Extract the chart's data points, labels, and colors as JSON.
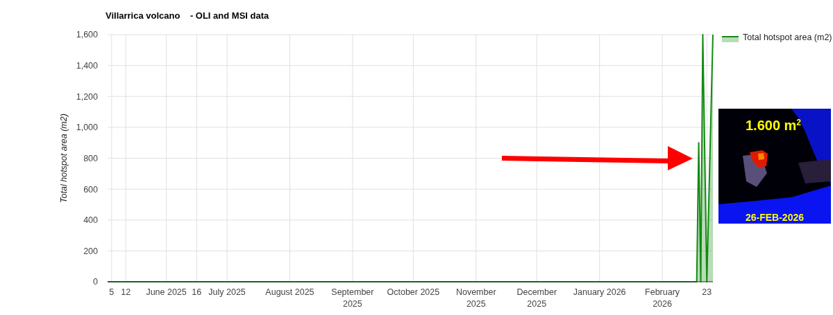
{
  "chart_data": {
    "type": "area",
    "title": "Villarrica volcano    - OLI and MSI data",
    "ylabel": "Total hotspot area (m2)",
    "x": [
      "2025-05-03",
      "2026-02-18",
      "2026-02-19",
      "2026-02-20",
      "2026-02-21",
      "2026-02-23",
      "2026-02-26"
    ],
    "series": [
      {
        "name": "Total hotspot area (m2)",
        "color": "#138a13",
        "values": [
          0,
          0,
          900,
          0,
          1600,
          0,
          1600
        ]
      }
    ],
    "xlim": [
      "2025-05-03",
      "2026-02-26"
    ],
    "xticks": [
      {
        "value": "2025-05-05",
        "label": "5"
      },
      {
        "value": "2025-05-12",
        "label": "12"
      },
      {
        "value": "2025-06-01",
        "label": "June 2025"
      },
      {
        "value": "2025-06-16",
        "label": "16"
      },
      {
        "value": "2025-07-01",
        "label": "July 2025"
      },
      {
        "value": "2025-08-01",
        "label": "August 2025"
      },
      {
        "value": "2025-09-01",
        "label": "September 2025"
      },
      {
        "value": "2025-10-01",
        "label": "October 2025"
      },
      {
        "value": "2025-11-01",
        "label": "November 2025"
      },
      {
        "value": "2025-12-01",
        "label": "December 2025"
      },
      {
        "value": "2026-01-01",
        "label": "January 2026"
      },
      {
        "value": "2026-02-01",
        "label": "February 2026"
      },
      {
        "value": "2026-02-23",
        "label": "23"
      }
    ],
    "ylim": [
      0,
      1600
    ],
    "yticks": [
      0,
      {
        "value": 200,
        "label": "200"
      },
      {
        "value": 400,
        "label": "400"
      },
      {
        "value": 600,
        "label": "600"
      },
      {
        "value": 800,
        "label": "800"
      },
      {
        "value": 1000,
        "label": "1,000"
      },
      {
        "value": 1200,
        "label": "1,200"
      },
      {
        "value": 1400,
        "label": "1,400"
      },
      {
        "value": 1600,
        "label": "1,600"
      }
    ],
    "grid": true,
    "legend": "top right",
    "annotations": [
      "1.600 m$^{2}$",
      "26-FEB-2026"
    ]
  }
}
